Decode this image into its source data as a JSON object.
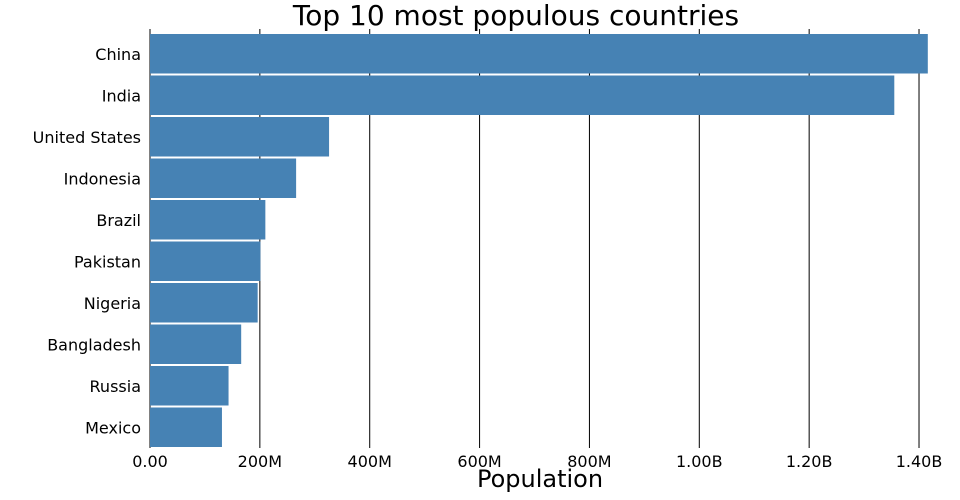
{
  "chart_data": {
    "type": "bar",
    "orientation": "horizontal",
    "title": "Top 10 most populous countries",
    "xlabel": "Population",
    "ylabel": "",
    "categories": [
      "China",
      "India",
      "United States",
      "Indonesia",
      "Brazil",
      "Pakistan",
      "Nigeria",
      "Bangladesh",
      "Russia",
      "Mexico"
    ],
    "values": [
      1416000000,
      1355000000,
      326000000,
      266000000,
      210000000,
      201000000,
      196000000,
      166000000,
      143000000,
      131000000
    ],
    "xlim": [
      0,
      1420000000
    ],
    "xticks": [
      0,
      200000000,
      400000000,
      600000000,
      800000000,
      1000000000,
      1200000000,
      1400000000
    ],
    "xtick_labels": [
      "0.00",
      "200M",
      "400M",
      "600M",
      "800M",
      "1.00B",
      "1.20B",
      "1.40B"
    ],
    "bar_color": "#4682b4",
    "grid": true,
    "gridline_color": "#000000"
  }
}
